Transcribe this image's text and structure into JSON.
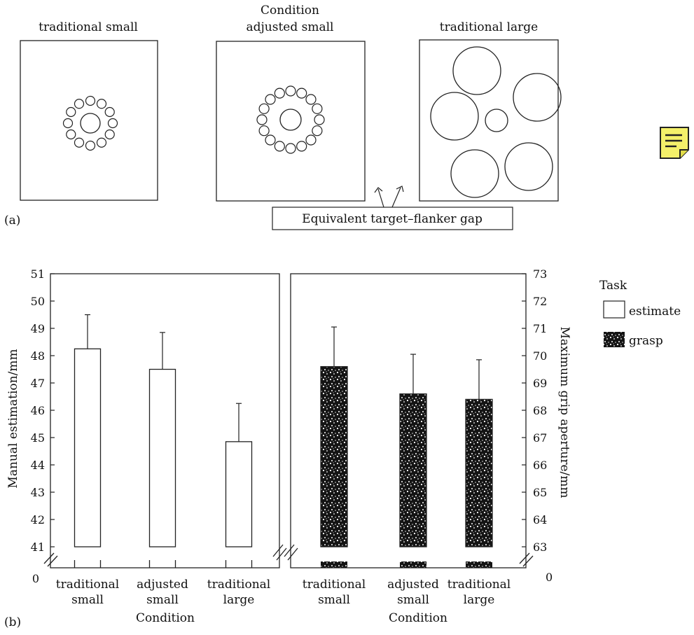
{
  "panel_a": {
    "label": "(a)",
    "header": "Condition",
    "stimuli": [
      {
        "title": "traditional small",
        "flanker_count": 12
      },
      {
        "title": "adjusted small",
        "flanker_count": 16
      },
      {
        "title": "traditional large",
        "flanker_count": 5
      }
    ],
    "callout": "Equivalent target–flanker gap"
  },
  "note_icon": {
    "name": "note-icon",
    "color": "#f4f06a"
  },
  "chart_data": [
    {
      "type": "bar",
      "panel_label": "(b)",
      "categories": [
        [
          "traditional",
          "small"
        ],
        [
          "adjusted",
          "small"
        ],
        [
          "traditional",
          "large"
        ]
      ],
      "xlabel": "Condition",
      "ylabel": "Manual estimation/mm",
      "ylim": [
        41,
        51
      ],
      "axis_break": true,
      "zero_label": "0",
      "yticks": [
        41,
        42,
        43,
        44,
        45,
        46,
        47,
        48,
        49,
        50,
        51
      ],
      "series": [
        {
          "name": "estimate",
          "values": [
            48.25,
            47.5,
            44.85
          ],
          "errors": [
            1.25,
            1.35,
            1.4
          ]
        }
      ]
    },
    {
      "type": "bar",
      "categories": [
        [
          "traditional",
          "small"
        ],
        [
          "adjusted",
          "small"
        ],
        [
          "traditional",
          "large"
        ]
      ],
      "xlabel": "Condition",
      "ylabel": "Maximum grip aperture/mm",
      "ylim": [
        63,
        73
      ],
      "axis_break": true,
      "zero_label": "0",
      "yticks": [
        63,
        64,
        65,
        66,
        67,
        68,
        69,
        70,
        71,
        72,
        73
      ],
      "series": [
        {
          "name": "grasp",
          "values": [
            69.6,
            68.6,
            68.4
          ],
          "errors": [
            1.45,
            1.45,
            1.45
          ]
        }
      ]
    }
  ],
  "legend": {
    "title": "Task",
    "items": [
      {
        "label": "estimate",
        "style": "open"
      },
      {
        "label": "grasp",
        "style": "speckled"
      }
    ]
  }
}
